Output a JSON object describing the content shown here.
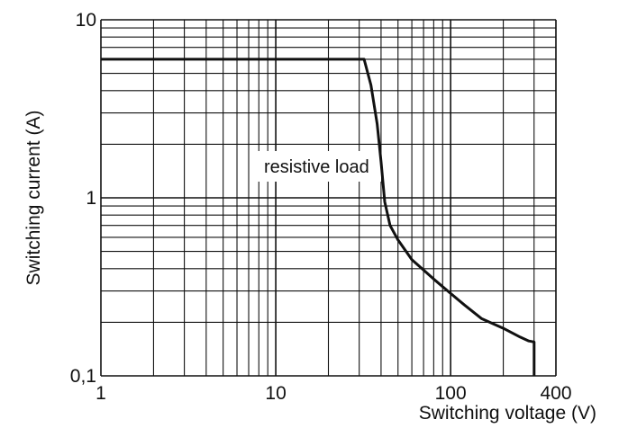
{
  "chart_data": {
    "type": "line",
    "x_scale": "log",
    "y_scale": "log",
    "xlim": [
      1,
      400
    ],
    "ylim": [
      0.1,
      10
    ],
    "grid": true,
    "xlabel": "Switching voltage (V)",
    "ylabel": "Switching current (A)",
    "x_tick_labels": [
      "1",
      "10",
      "100",
      "400"
    ],
    "y_tick_labels": [
      "0,1",
      "1",
      "10"
    ],
    "annotation": "resistive load",
    "series": [
      {
        "x": [
          1,
          20,
          30,
          32,
          35,
          38,
          40,
          42,
          45,
          50,
          60,
          80,
          100,
          120,
          150,
          200,
          250,
          280,
          300,
          300
        ],
        "y": [
          6,
          6,
          6,
          6,
          4.3,
          2.6,
          1.6,
          0.95,
          0.7,
          0.58,
          0.45,
          0.35,
          0.29,
          0.25,
          0.21,
          0.185,
          0.165,
          0.157,
          0.155,
          0.1
        ]
      }
    ]
  }
}
